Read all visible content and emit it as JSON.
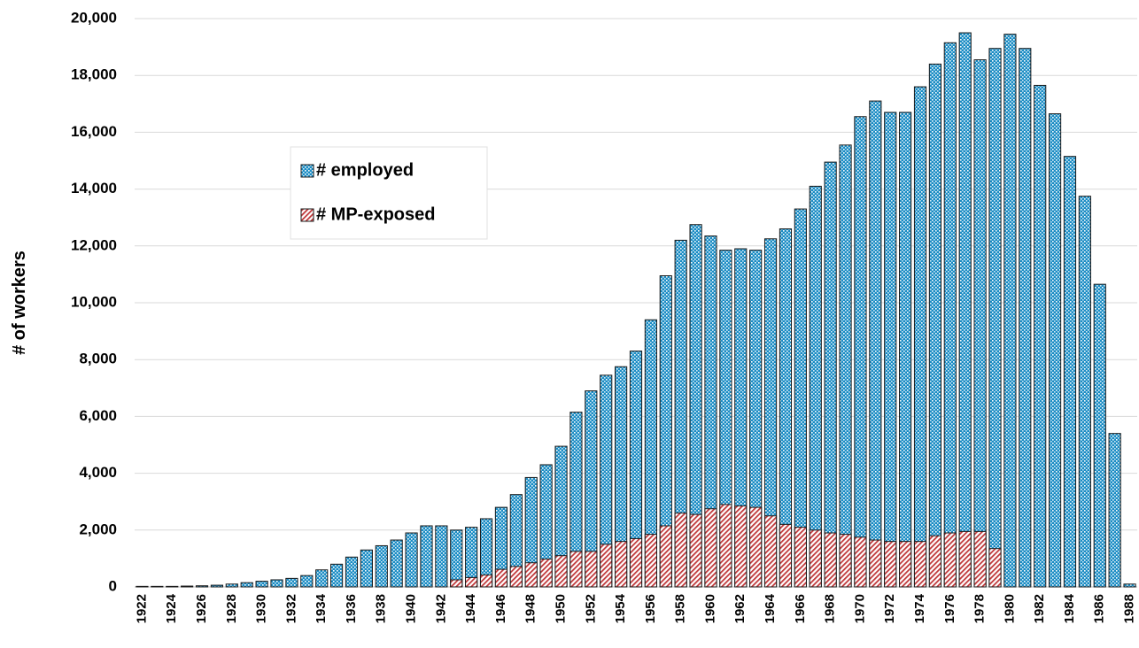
{
  "chart_data": {
    "type": "overlapped-bar",
    "y_label": "# of workers",
    "categories": [
      "1922",
      null,
      "1924",
      null,
      "1926",
      null,
      "1928",
      null,
      "1930",
      null,
      "1932",
      null,
      "1934",
      null,
      "1936",
      null,
      "1938",
      null,
      "1940",
      null,
      "1942",
      null,
      "1944",
      null,
      "1946",
      null,
      "1948",
      null,
      "1950",
      null,
      "1952",
      null,
      "1954",
      null,
      "1956",
      null,
      "1958",
      null,
      "1960",
      null,
      "1962",
      null,
      "1964",
      null,
      "1966",
      null,
      "1968",
      null,
      "1970",
      null,
      "1972",
      null,
      "1974",
      null,
      "1976",
      null,
      "1978",
      null,
      "1980",
      null,
      "1982",
      null,
      "1984",
      null,
      "1986",
      null,
      "1988"
    ],
    "series": [
      {
        "name": "# employed",
        "color": "#1a8cc4",
        "pattern": "dots",
        "values": [
          20,
          20,
          20,
          30,
          40,
          60,
          100,
          150,
          200,
          250,
          300,
          400,
          600,
          800,
          1050,
          1300,
          1450,
          1650,
          1900,
          2150,
          2150,
          2000,
          2100,
          2400,
          2800,
          3250,
          3850,
          4300,
          4950,
          6150,
          6900,
          7450,
          7750,
          8300,
          9400,
          10950,
          12200,
          12750,
          12350,
          11850,
          11900,
          11850,
          12250,
          12600,
          13300,
          14100,
          14950,
          15550,
          16550,
          17100,
          16700,
          16700,
          17600,
          18400,
          19150,
          19500,
          18550,
          18950,
          19450,
          18950,
          17650,
          16650,
          15150,
          13750,
          10650,
          5400,
          100
        ]
      },
      {
        "name": "# MP-exposed",
        "color": "#c0393b",
        "pattern": "hatch",
        "values": [
          null,
          null,
          null,
          null,
          null,
          null,
          null,
          null,
          null,
          null,
          null,
          null,
          null,
          null,
          null,
          null,
          null,
          null,
          null,
          null,
          null,
          250,
          330,
          420,
          620,
          720,
          850,
          980,
          1100,
          1250,
          1250,
          1500,
          1600,
          1700,
          1850,
          2150,
          2600,
          2550,
          2750,
          2900,
          2850,
          2800,
          2500,
          2200,
          2100,
          2000,
          1900,
          1850,
          1750,
          1650,
          1600,
          1600,
          1600,
          1800,
          1900,
          1950,
          1950,
          1350,
          null,
          null,
          null,
          null,
          null,
          null,
          null,
          null,
          null
        ]
      }
    ],
    "ylim": [
      0,
      20000
    ],
    "yticks": [
      0,
      {
        "value": 2000,
        "label": "2,000"
      },
      {
        "value": 4000,
        "label": "4,000"
      },
      {
        "value": 6000,
        "label": "6,000"
      },
      {
        "value": 8000,
        "label": "8,000"
      },
      {
        "value": 10000,
        "label": "10,000"
      },
      {
        "value": 12000,
        "label": "12,000"
      },
      {
        "value": 14000,
        "label": "14,000"
      },
      {
        "value": 16000,
        "label": "16,000"
      },
      {
        "value": 18000,
        "label": "18,000"
      },
      {
        "value": 20000,
        "label": "20,000"
      }
    ],
    "grid": true
  }
}
